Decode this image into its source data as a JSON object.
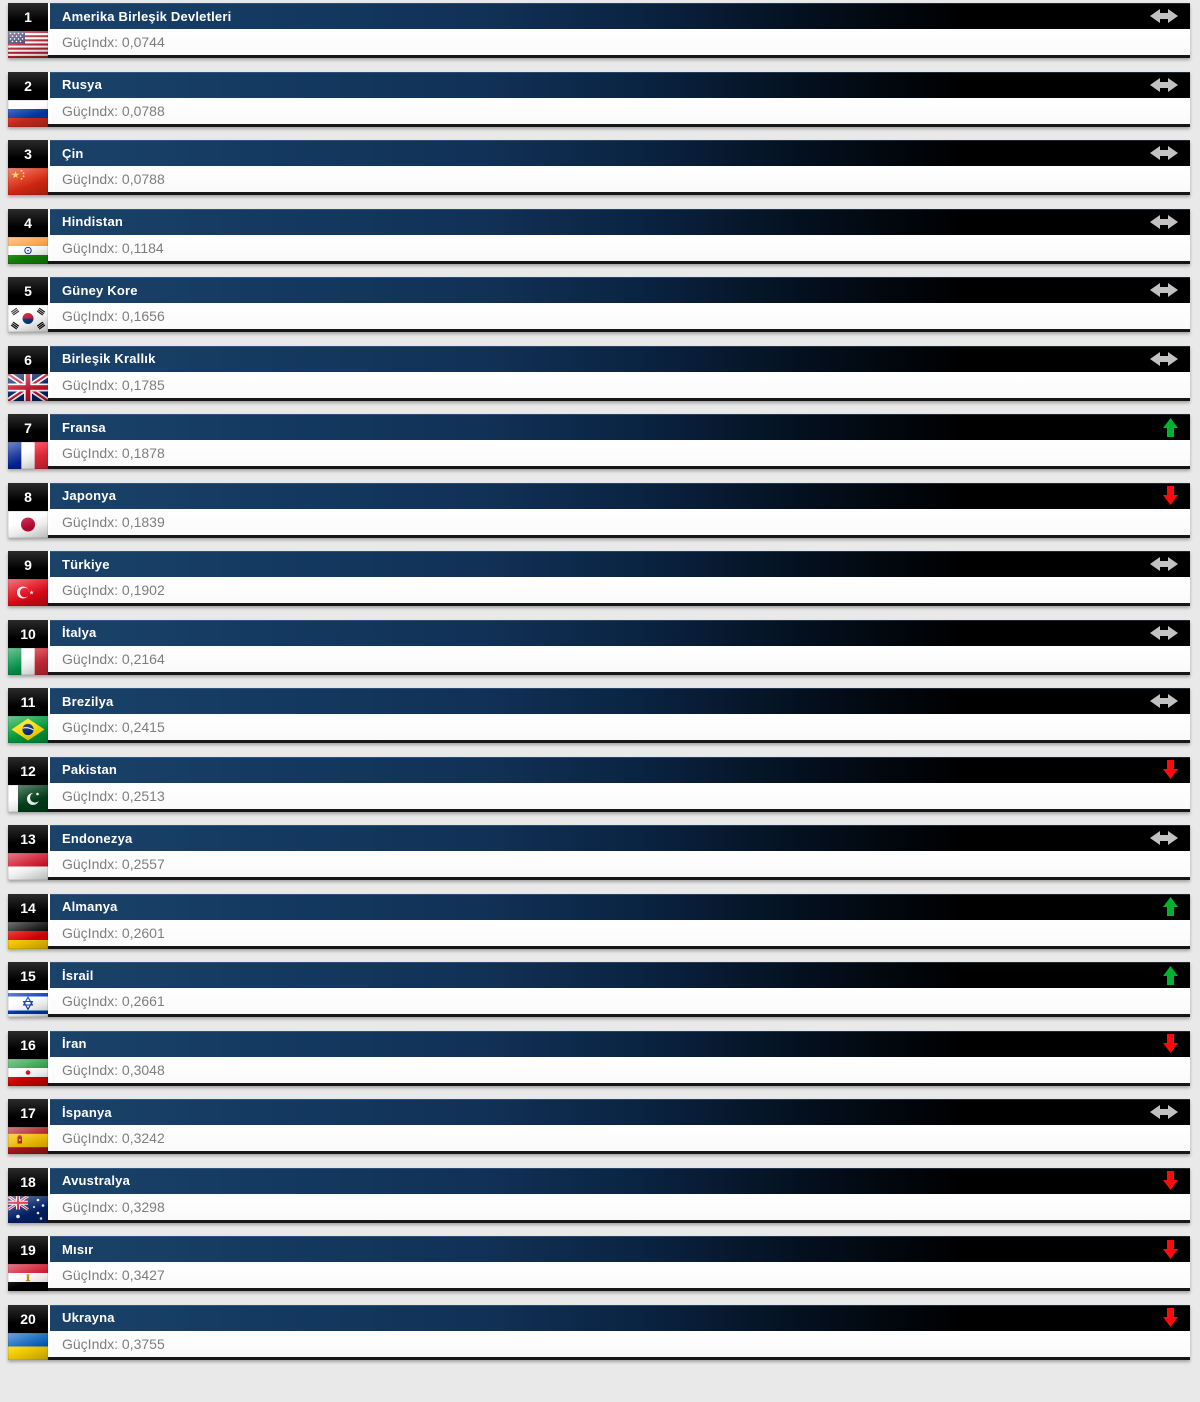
{
  "list": {
    "index_label": "GüçIndx",
    "rows": [
      {
        "rank": "1",
        "country": "Amerika Birleşik Devletleri",
        "index_value": "0,0744",
        "trend": "same",
        "flag": "us"
      },
      {
        "rank": "2",
        "country": "Rusya",
        "index_value": "0,0788",
        "trend": "same",
        "flag": "ru"
      },
      {
        "rank": "3",
        "country": "Çin",
        "index_value": "0,0788",
        "trend": "same",
        "flag": "cn"
      },
      {
        "rank": "4",
        "country": "Hindistan",
        "index_value": "0,1184",
        "trend": "same",
        "flag": "in"
      },
      {
        "rank": "5",
        "country": "Güney Kore",
        "index_value": "0,1656",
        "trend": "same",
        "flag": "kr"
      },
      {
        "rank": "6",
        "country": "Birleşik Krallık",
        "index_value": "0,1785",
        "trend": "same",
        "flag": "gb"
      },
      {
        "rank": "7",
        "country": "Fransa",
        "index_value": "0,1878",
        "trend": "up",
        "flag": "fr"
      },
      {
        "rank": "8",
        "country": "Japonya",
        "index_value": "0,1839",
        "trend": "down",
        "flag": "jp"
      },
      {
        "rank": "9",
        "country": "Türkiye",
        "index_value": "0,1902",
        "trend": "same",
        "flag": "tr"
      },
      {
        "rank": "10",
        "country": "İtalya",
        "index_value": "0,2164",
        "trend": "same",
        "flag": "it"
      },
      {
        "rank": "11",
        "country": "Brezilya",
        "index_value": "0,2415",
        "trend": "same",
        "flag": "br"
      },
      {
        "rank": "12",
        "country": "Pakistan",
        "index_value": "0,2513",
        "trend": "down",
        "flag": "pk"
      },
      {
        "rank": "13",
        "country": "Endonezya",
        "index_value": "0,2557",
        "trend": "same",
        "flag": "id"
      },
      {
        "rank": "14",
        "country": "Almanya",
        "index_value": "0,2601",
        "trend": "up",
        "flag": "de"
      },
      {
        "rank": "15",
        "country": "İsrail",
        "index_value": "0,2661",
        "trend": "up",
        "flag": "il"
      },
      {
        "rank": "16",
        "country": "İran",
        "index_value": "0,3048",
        "trend": "down",
        "flag": "ir"
      },
      {
        "rank": "17",
        "country": "İspanya",
        "index_value": "0,3242",
        "trend": "same",
        "flag": "es"
      },
      {
        "rank": "18",
        "country": "Avustralya",
        "index_value": "0,3298",
        "trend": "down",
        "flag": "au"
      },
      {
        "rank": "19",
        "country": "Mısır",
        "index_value": "0,3427",
        "trend": "down",
        "flag": "eg"
      },
      {
        "rank": "20",
        "country": "Ukrayna",
        "index_value": "0,3755",
        "trend": "down",
        "flag": "ua"
      }
    ]
  },
  "colors": {
    "trend_up": "#00b22d",
    "trend_down": "#ff0a0a",
    "trend_same": "#c2c2c2",
    "header_navy": "#143a62",
    "rank_box": "#000000"
  }
}
